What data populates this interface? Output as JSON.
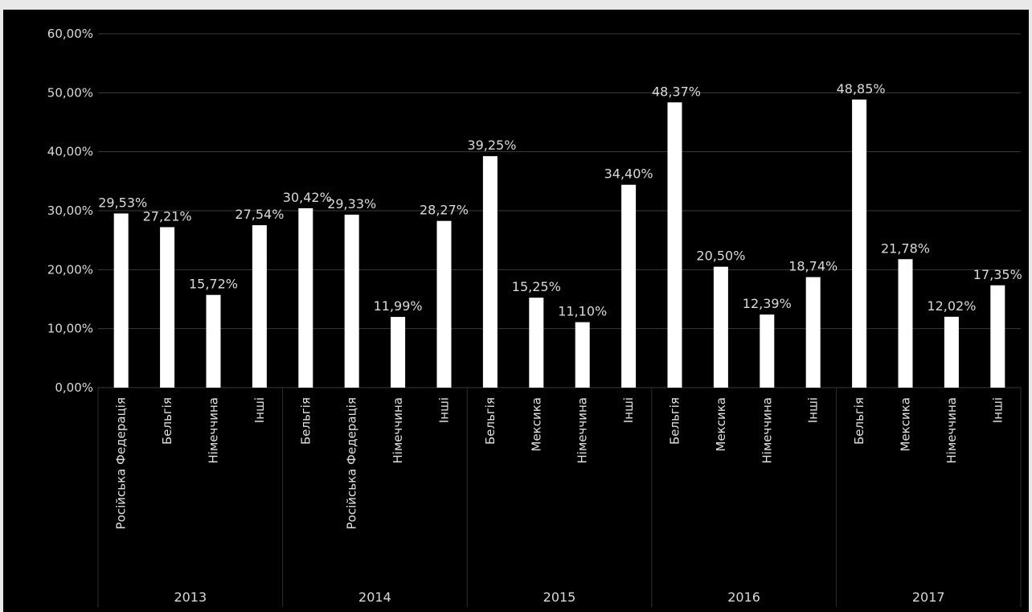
{
  "chart_data": {
    "type": "bar",
    "title": "",
    "xlabel": "",
    "ylabel": "",
    "ylim": [
      0,
      60
    ],
    "y_ticks": [
      "0,00%",
      "10,00%",
      "20,00%",
      "30,00%",
      "40,00%",
      "50,00%",
      "60,00%"
    ],
    "grid": true,
    "legend": "none",
    "colors": {
      "background": "#000000",
      "bar": "#ffffff",
      "grid": "#3a3a3a",
      "text": "#d9d9d9"
    },
    "groups": [
      {
        "name": "2013",
        "categories": [
          "Російська Федерація",
          "Бельгія",
          "Німеччина",
          "Інші"
        ],
        "values": [
          29.53,
          27.21,
          15.72,
          27.54
        ],
        "labels": [
          "29,53%",
          "27,21%",
          "15,72%",
          "27,54%"
        ]
      },
      {
        "name": "2014",
        "categories": [
          "Бельгія",
          "Російська Федерація",
          "Німеччина",
          "Інші"
        ],
        "values": [
          30.42,
          29.33,
          11.99,
          28.27
        ],
        "labels": [
          "30,42%",
          "29,33%",
          "11,99%",
          "28,27%"
        ]
      },
      {
        "name": "2015",
        "categories": [
          "Бельгія",
          "Мексика",
          "Німеччина",
          "Інші"
        ],
        "values": [
          39.25,
          15.25,
          11.1,
          34.4
        ],
        "labels": [
          "39,25%",
          "15,25%",
          "11,10%",
          "34,40%"
        ]
      },
      {
        "name": "2016",
        "categories": [
          "Бельгія",
          "Мексика",
          "Німеччина",
          "Інші"
        ],
        "values": [
          48.37,
          20.5,
          12.39,
          18.74
        ],
        "labels": [
          "48,37%",
          "20,50%",
          "12,39%",
          "18,74%"
        ]
      },
      {
        "name": "2017",
        "categories": [
          "Бельгія",
          "Мексика",
          "Німеччина",
          "Інші"
        ],
        "values": [
          48.85,
          21.78,
          12.02,
          17.35
        ],
        "labels": [
          "48,85%",
          "21,78%",
          "12,02%",
          "17,35%"
        ]
      }
    ]
  }
}
